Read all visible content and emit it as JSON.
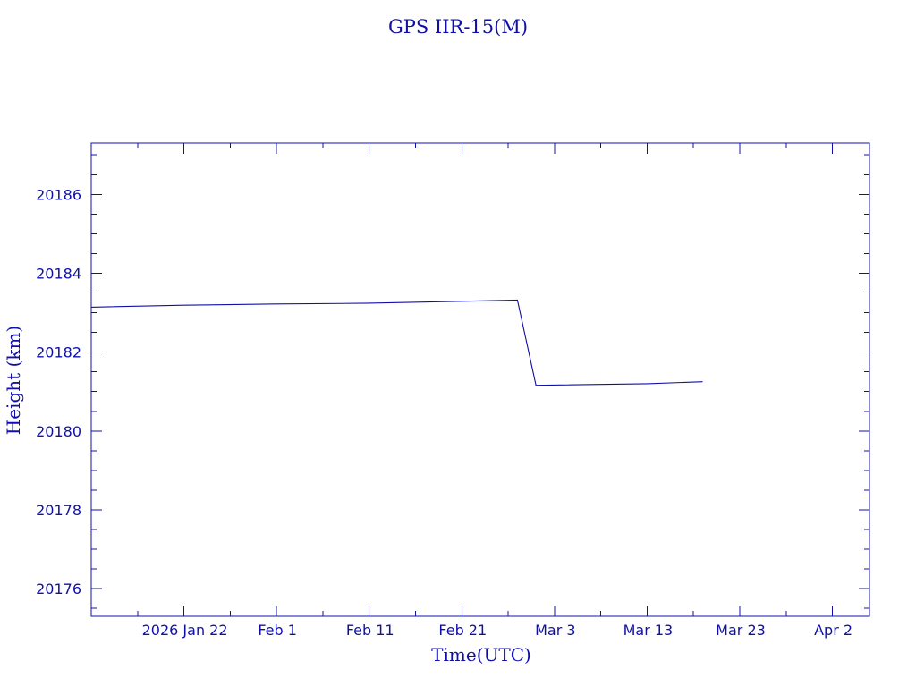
{
  "chart_data": {
    "type": "line",
    "title": "GPS IIR-15(M)",
    "xlabel": "Time(UTC)",
    "ylabel": "Height (km)",
    "x_range": [
      "2026-01-12",
      "2026-04-06"
    ],
    "ylim": [
      20175.3,
      20187.3
    ],
    "x_ticks": [
      {
        "date": "2026-01-22",
        "label": "2026 Jan 22"
      },
      {
        "date": "2026-02-01",
        "label": "Feb  1"
      },
      {
        "date": "2026-02-11",
        "label": "Feb 11"
      },
      {
        "date": "2026-02-21",
        "label": "Feb 21"
      },
      {
        "date": "2026-03-03",
        "label": "Mar  3"
      },
      {
        "date": "2026-03-13",
        "label": "Mar 13"
      },
      {
        "date": "2026-03-23",
        "label": "Mar 23"
      },
      {
        "date": "2026-04-02",
        "label": "Apr  2"
      }
    ],
    "y_ticks": [
      20176,
      20178,
      20180,
      20182,
      20184,
      20186
    ],
    "series": [
      {
        "color": "#1010a8",
        "points": [
          {
            "x": "2026-01-12",
            "y": 20183.14
          },
          {
            "x": "2026-01-22",
            "y": 20183.19
          },
          {
            "x": "2026-02-01",
            "y": 20183.22
          },
          {
            "x": "2026-02-11",
            "y": 20183.24
          },
          {
            "x": "2026-02-21",
            "y": 20183.29
          },
          {
            "x": "2026-02-27",
            "y": 20183.32
          },
          {
            "x": "2026-03-01",
            "y": 20181.16
          },
          {
            "x": "2026-03-13",
            "y": 20181.2
          },
          {
            "x": "2026-03-19",
            "y": 20181.25
          }
        ]
      }
    ]
  }
}
